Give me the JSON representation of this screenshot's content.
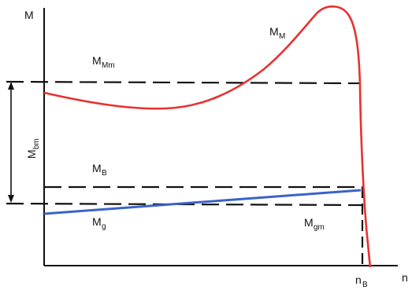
{
  "axes": {
    "y_label": "M",
    "x_label": "n"
  },
  "labels": {
    "MM": {
      "main": "M",
      "sub": "M"
    },
    "MMm": {
      "main": "M",
      "sub": "Mm"
    },
    "Mbm": {
      "main": "M",
      "sub": "bm"
    },
    "MB": {
      "main": "M",
      "sub": "B"
    },
    "Mg": {
      "main": "M",
      "sub": "g"
    },
    "Mgm": {
      "main": "M",
      "sub": "gm"
    },
    "nB": {
      "main": "n",
      "sub": "B"
    }
  },
  "colors": {
    "motor_curve": "#e8312f",
    "load_curve": "#3b63c7",
    "dashed": "#111111",
    "axis": "#111111"
  }
}
